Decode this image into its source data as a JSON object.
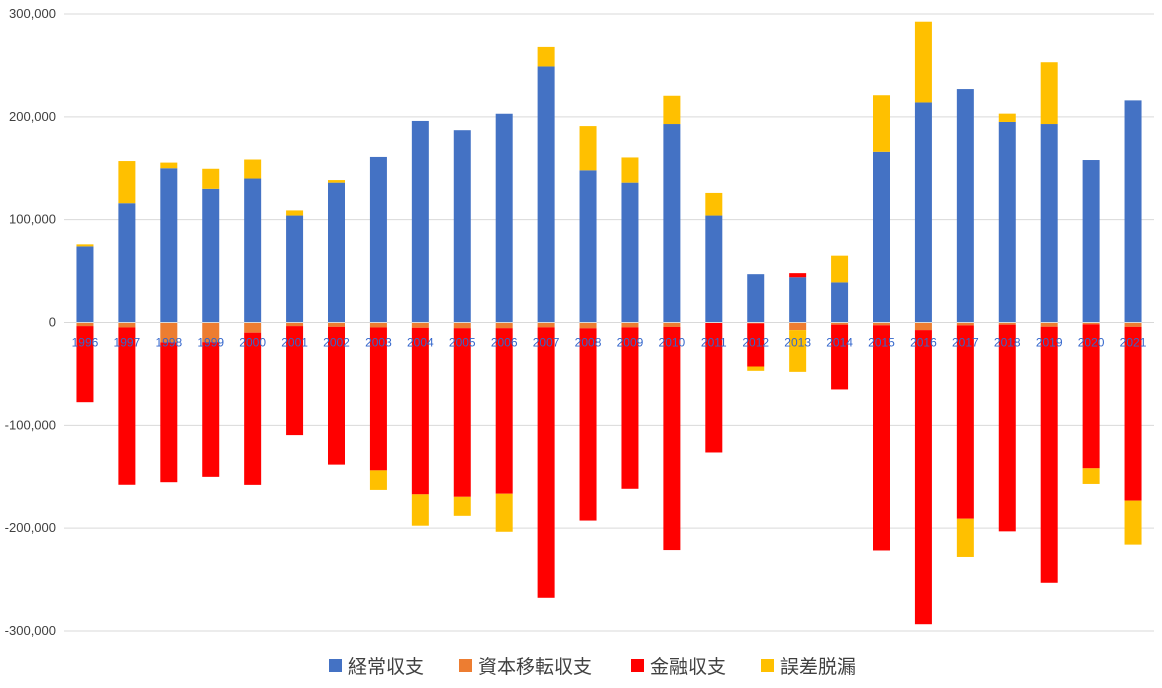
{
  "chart_data": {
    "type": "bar",
    "stacked": true,
    "categories": [
      "1996",
      "1997",
      "1998",
      "1999",
      "2000",
      "2001",
      "2002",
      "2003",
      "2004",
      "2005",
      "2006",
      "2007",
      "2008",
      "2009",
      "2010",
      "2011",
      "2012",
      "2013",
      "2014",
      "2015",
      "2016",
      "2017",
      "2018",
      "2019",
      "2020",
      "2021"
    ],
    "series": [
      {
        "name": "経常収支",
        "color": "#4472c4",
        "values": [
          74000,
          116000,
          150000,
          130000,
          140000,
          104000,
          136000,
          161000,
          196000,
          187000,
          203000,
          249000,
          148000,
          136000,
          193000,
          104000,
          47000,
          44000,
          39000,
          166000,
          214000,
          227000,
          195000,
          193000,
          158000,
          216000
        ]
      },
      {
        "name": "資本移転収支",
        "color": "#ed7d31",
        "values": [
          -3500,
          -4800,
          -19300,
          -19100,
          -9900,
          -3500,
          -4200,
          -4800,
          -5100,
          -5500,
          -5500,
          -4700,
          -5600,
          -4700,
          -4300,
          -400,
          -800,
          -7400,
          -2100,
          -2700,
          -7400,
          -2800,
          -2100,
          -4100,
          -1800,
          -4200
        ]
      },
      {
        "name": "金融収支",
        "color": "#ff0000",
        "values": [
          -74000,
          -153000,
          -136000,
          -131000,
          -148000,
          -106000,
          -134000,
          -139000,
          -162000,
          -164000,
          -161000,
          -263000,
          -187000,
          -157000,
          -217000,
          -126000,
          -42000,
          4000,
          -63000,
          -219000,
          -286000,
          -188000,
          -201000,
          -249000,
          -140000,
          -169000
        ]
      },
      {
        "name": "誤差脱漏",
        "color": "#ffc000",
        "values": [
          2000,
          41000,
          5500,
          19500,
          18500,
          5000,
          2500,
          -19000,
          -30500,
          -18500,
          -37000,
          19000,
          43000,
          24500,
          27500,
          22000,
          -4200,
          -40600,
          26000,
          55000,
          78500,
          -37200,
          8100,
          60100,
          -15200,
          -42800
        ]
      }
    ],
    "ylim": [
      -300000,
      300000
    ],
    "yticks": [
      "-300,000",
      "-200,000",
      "-100,000",
      "0",
      "100,000",
      "200,000",
      "300,000"
    ],
    "ytick_values": [
      -300000,
      -200000,
      -100000,
      0,
      100000,
      200000,
      300000
    ],
    "grid": true,
    "legend_position": "bottom"
  }
}
